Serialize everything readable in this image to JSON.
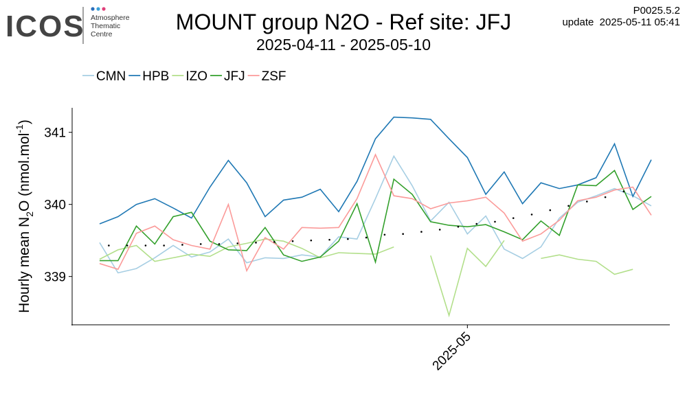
{
  "header": {
    "logo": "ICOS",
    "logo_text": [
      "Atmosphere",
      "Thematic",
      "Centre"
    ],
    "version": "P0025.5.2",
    "update": "update  2025-05-11 05:41"
  },
  "chart_data": {
    "type": "line",
    "title": "MOUNT group N2O - Ref site: JFJ",
    "subtitle": "2025-04-11 - 2025-05-10",
    "ylabel_parts": [
      "Hourly mean N",
      "2",
      "O (nmol.mol",
      "-1",
      ")"
    ],
    "categories": [
      null,
      null,
      null,
      null,
      null,
      null,
      null,
      null,
      null,
      null,
      null,
      null,
      null,
      null,
      null,
      null,
      null,
      null,
      null,
      null,
      "2025-05",
      null,
      null,
      null,
      null,
      null,
      null,
      null,
      null,
      null,
      null
    ],
    "ylim": [
      338.33,
      341.34
    ],
    "yticks": [
      339,
      340,
      341
    ],
    "grid": false,
    "series": [
      {
        "name": "CMN",
        "color": "#a6cee3",
        "values": [
          339.47,
          339.05,
          339.11,
          339.26,
          339.43,
          339.27,
          339.34,
          339.52,
          339.19,
          339.26,
          339.25,
          339.3,
          339.27,
          339.55,
          339.52,
          340.08,
          340.67,
          340.26,
          339.77,
          340.03,
          339.59,
          339.84,
          339.38,
          339.25,
          339.41,
          339.81,
          340.03,
          340.12,
          340.22,
          340.12,
          339.98
        ]
      },
      {
        "name": "HPB",
        "color": "#1f78b4",
        "values": [
          339.73,
          339.83,
          340.0,
          340.08,
          339.95,
          339.81,
          340.24,
          340.61,
          340.3,
          339.83,
          340.06,
          340.1,
          340.21,
          339.9,
          340.32,
          340.91,
          341.21,
          341.2,
          341.18,
          340.91,
          340.65,
          340.14,
          340.45,
          340.01,
          340.3,
          340.22,
          340.27,
          340.37,
          340.84,
          340.11,
          340.62
        ]
      },
      {
        "name": "IZO",
        "color": "#b2df8a",
        "values": [
          339.24,
          339.37,
          339.43,
          339.21,
          339.26,
          339.31,
          339.28,
          339.41,
          339.46,
          339.52,
          339.49,
          339.39,
          339.26,
          339.33,
          339.32,
          339.31,
          339.41,
          null,
          339.29,
          338.46,
          339.39,
          339.14,
          339.5,
          null,
          339.25,
          339.3,
          339.24,
          339.21,
          339.03,
          339.1,
          null
        ]
      },
      {
        "name": "JFJ",
        "color": "#33a02c",
        "values": [
          339.22,
          339.22,
          339.7,
          339.45,
          339.83,
          339.89,
          339.49,
          339.37,
          339.36,
          339.68,
          339.3,
          339.21,
          339.27,
          339.49,
          340.01,
          339.2,
          340.35,
          340.14,
          339.76,
          339.71,
          339.69,
          339.72,
          339.62,
          339.51,
          339.77,
          339.57,
          340.27,
          340.26,
          340.47,
          339.93,
          340.11
        ]
      },
      {
        "name": "ZSF",
        "color": "#fb9a99",
        "values": [
          339.18,
          339.1,
          339.6,
          339.7,
          339.51,
          339.43,
          339.38,
          340.0,
          339.08,
          339.54,
          339.38,
          339.68,
          339.67,
          339.68,
          340.08,
          340.69,
          340.12,
          340.08,
          339.94,
          340.02,
          340.05,
          340.1,
          339.88,
          339.49,
          339.59,
          339.78,
          340.05,
          340.1,
          340.2,
          340.24,
          339.85
        ]
      },
      {
        "color": "#000000",
        "style": "dots",
        "values": [
          339.43,
          339.43,
          339.43,
          339.43,
          339.44,
          339.45,
          339.45,
          339.46,
          339.47,
          339.48,
          339.49,
          339.5,
          339.51,
          339.52,
          339.54,
          339.58,
          339.59,
          339.62,
          339.65,
          339.69,
          339.73,
          339.76,
          339.81,
          339.86,
          339.92,
          339.98,
          340.04,
          340.1,
          340.18,
          null,
          null
        ]
      }
    ]
  }
}
